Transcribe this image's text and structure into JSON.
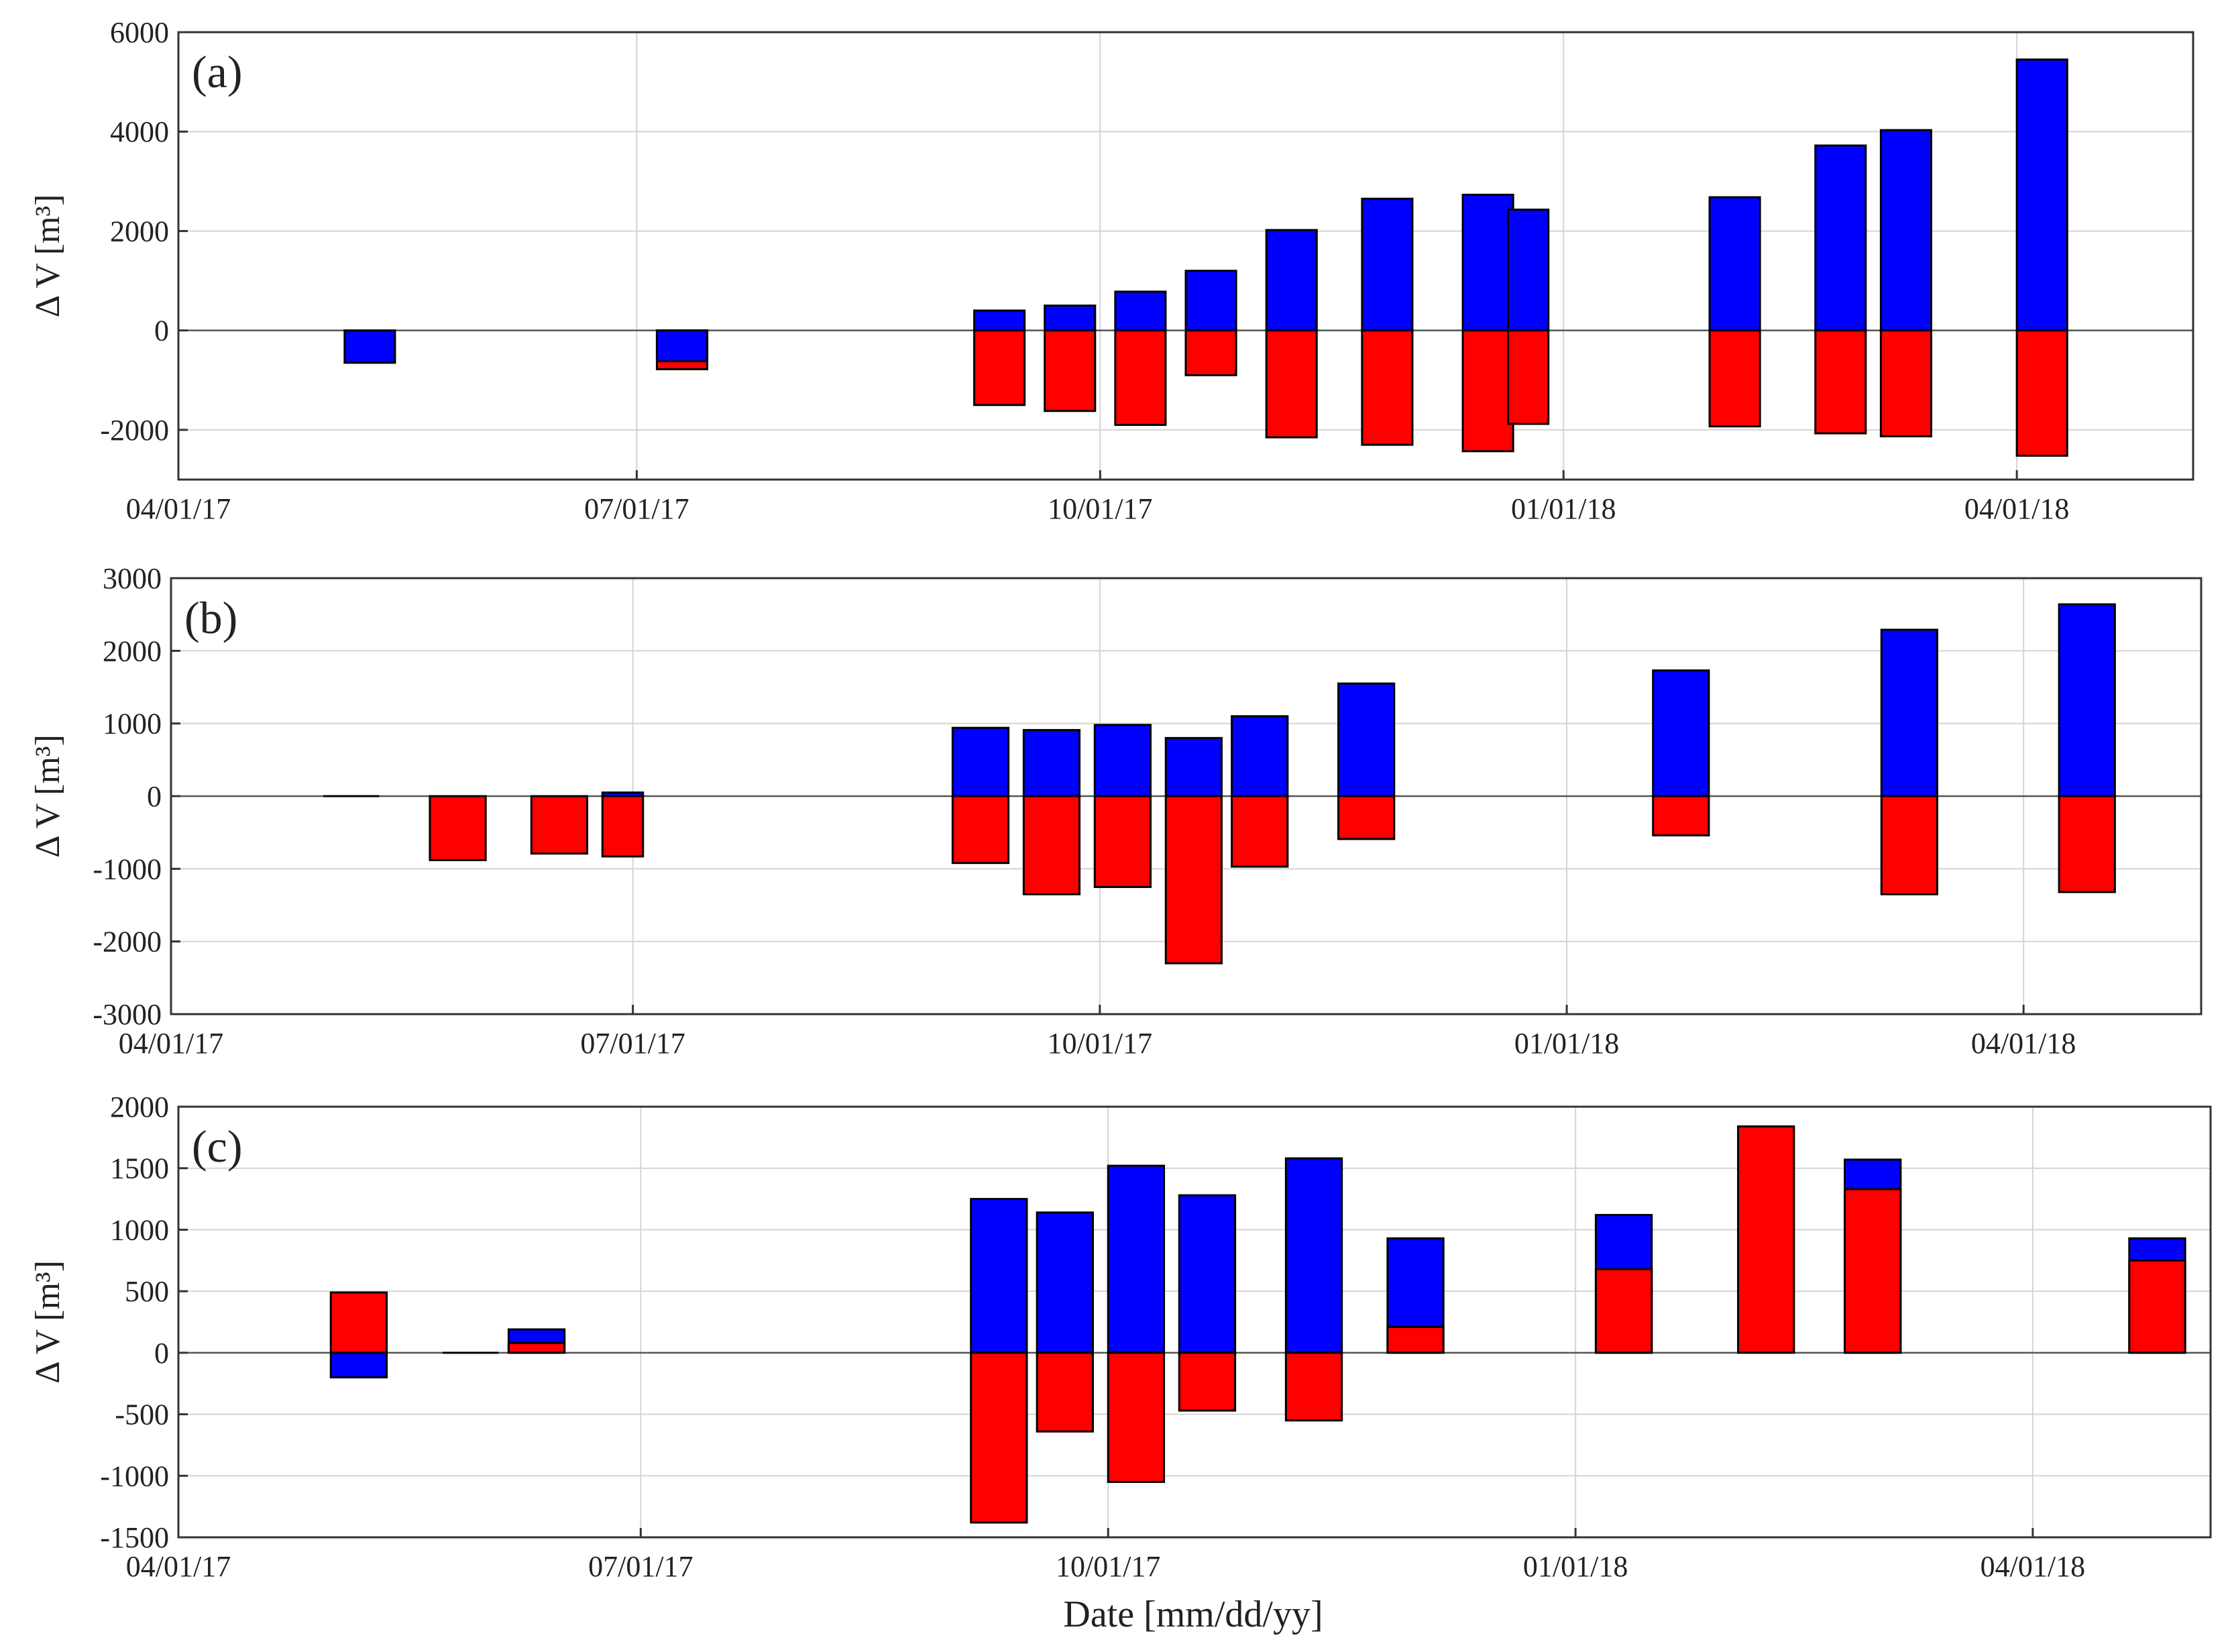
{
  "figure": {
    "xlabel": "Date [mm/dd/yy]",
    "colors": {
      "positive": "#0000ff",
      "negative": "#ff0000",
      "frame": "#333333",
      "grid": "#d4d4d4",
      "zero_line": "#555555"
    },
    "x_domain": [
      "2017-04-01",
      "2018-05-06"
    ]
  },
  "chart_data": [
    {
      "type": "bar",
      "panel": "(a)",
      "ylabel": "Δ V [m³]",
      "ylim": [
        -3000,
        6000
      ],
      "yticks": [
        6000,
        4000,
        2000,
        0,
        -2000
      ],
      "ytick_labels": [
        "6000",
        "4000",
        "2000",
        "0",
        "-2000"
      ],
      "xticks": [
        "2017-04-01",
        "2017-07-01",
        "2017-10-01",
        "2018-01-01",
        "2018-04-01"
      ],
      "xtick_labels": [
        "04/01/17",
        "07/01/17",
        "10/01/17",
        "01/01/18",
        "04/01/18"
      ],
      "series_names": [
        "blue",
        "red"
      ],
      "bars": [
        {
          "start": "2017-05-04",
          "end": "2017-05-14",
          "blue": -650,
          "red": 0
        },
        {
          "start": "2017-07-05",
          "end": "2017-07-15",
          "blue": -620,
          "red": -780
        },
        {
          "start": "2017-09-06",
          "end": "2017-09-16",
          "blue": 400,
          "red": -1500
        },
        {
          "start": "2017-09-20",
          "end": "2017-09-30",
          "blue": 500,
          "red": -1620
        },
        {
          "start": "2017-10-04",
          "end": "2017-10-14",
          "blue": 780,
          "red": -1900
        },
        {
          "start": "2017-10-18",
          "end": "2017-10-28",
          "blue": 1200,
          "red": -900
        },
        {
          "start": "2017-11-03",
          "end": "2017-11-13",
          "blue": 2020,
          "red": -2150
        },
        {
          "start": "2017-11-22",
          "end": "2017-12-02",
          "blue": 2650,
          "red": -2300
        },
        {
          "start": "2017-12-12",
          "end": "2017-12-22",
          "blue": 2730,
          "red": -2430
        },
        {
          "start": "2017-12-21",
          "end": "2017-12-29",
          "blue": 2430,
          "red": -1880
        },
        {
          "start": "2018-01-30",
          "end": "2018-02-09",
          "blue": 2680,
          "red": -1930
        },
        {
          "start": "2018-02-20",
          "end": "2018-03-02",
          "blue": 3720,
          "red": -2070
        },
        {
          "start": "2018-03-05",
          "end": "2018-03-15",
          "blue": 4030,
          "red": -2130
        },
        {
          "start": "2018-04-01",
          "end": "2018-04-11",
          "blue": 5450,
          "red": -2520
        }
      ]
    },
    {
      "type": "bar",
      "panel": "(b)",
      "ylabel": "Δ V [m³]",
      "ylim": [
        -3000,
        3000
      ],
      "yticks": [
        3000,
        2000,
        1000,
        0,
        -1000,
        -2000,
        -3000
      ],
      "ytick_labels": [
        "3000",
        "2000",
        "1000",
        "0",
        "-1000",
        "-2000",
        "-3000"
      ],
      "xticks": [
        "2017-04-01",
        "2017-07-01",
        "2017-10-01",
        "2018-01-01",
        "2018-04-01"
      ],
      "xtick_labels": [
        "04/01/17",
        "07/01/17",
        "10/01/17",
        "01/01/18",
        "04/01/18"
      ],
      "series_names": [
        "blue",
        "red"
      ],
      "bars": [
        {
          "start": "2017-05-01",
          "end": "2017-05-12",
          "blue": 0,
          "red": 0
        },
        {
          "start": "2017-05-22",
          "end": "2017-06-02",
          "blue": 0,
          "red": -880
        },
        {
          "start": "2017-06-11",
          "end": "2017-06-22",
          "blue": 0,
          "red": -790
        },
        {
          "start": "2017-06-25",
          "end": "2017-07-03",
          "blue": 50,
          "red": -830
        },
        {
          "start": "2017-09-02",
          "end": "2017-09-13",
          "blue": 940,
          "red": -920
        },
        {
          "start": "2017-09-16",
          "end": "2017-09-27",
          "blue": 910,
          "red": -1350
        },
        {
          "start": "2017-09-30",
          "end": "2017-10-11",
          "blue": 980,
          "red": -1250
        },
        {
          "start": "2017-10-14",
          "end": "2017-10-25",
          "blue": 800,
          "red": -2300
        },
        {
          "start": "2017-10-27",
          "end": "2017-11-07",
          "blue": 1100,
          "red": -970
        },
        {
          "start": "2017-11-17",
          "end": "2017-11-28",
          "blue": 1550,
          "red": -590
        },
        {
          "start": "2018-01-18",
          "end": "2018-01-29",
          "blue": 1730,
          "red": -540
        },
        {
          "start": "2018-03-04",
          "end": "2018-03-15",
          "blue": 2290,
          "red": -1350
        },
        {
          "start": "2018-04-08",
          "end": "2018-04-19",
          "blue": 2640,
          "red": -1320
        }
      ]
    },
    {
      "type": "bar",
      "panel": "(c)",
      "ylabel": "Δ V [m³]",
      "ylim": [
        -1500,
        2000
      ],
      "yticks": [
        2000,
        1500,
        1000,
        500,
        0,
        -500,
        -1000,
        -1500
      ],
      "ytick_labels": [
        "2000",
        "1500",
        "1000",
        "500",
        "0",
        "-500",
        "-1000",
        "-1500"
      ],
      "xticks": [
        "2017-04-01",
        "2017-07-01",
        "2017-10-01",
        "2018-01-01",
        "2018-04-01"
      ],
      "xtick_labels": [
        "04/01/17",
        "07/01/17",
        "10/01/17",
        "01/01/18",
        "04/01/18"
      ],
      "series_names": [
        "blue",
        "red"
      ],
      "bars": [
        {
          "start": "2017-05-01",
          "end": "2017-05-12",
          "blue": -200,
          "red": 490
        },
        {
          "start": "2017-05-23",
          "end": "2017-06-03",
          "blue": 0,
          "red": 0
        },
        {
          "start": "2017-06-05",
          "end": "2017-06-16",
          "blue": 190,
          "red": 80
        },
        {
          "start": "2017-09-04",
          "end": "2017-09-15",
          "blue": 1250,
          "red": -1380
        },
        {
          "start": "2017-09-17",
          "end": "2017-09-28",
          "blue": 1140,
          "red": -640
        },
        {
          "start": "2017-10-01",
          "end": "2017-10-12",
          "blue": 1520,
          "red": -1050
        },
        {
          "start": "2017-10-15",
          "end": "2017-10-26",
          "blue": 1280,
          "red": -470
        },
        {
          "start": "2017-11-05",
          "end": "2017-11-16",
          "blue": 1580,
          "red": -550
        },
        {
          "start": "2017-11-25",
          "end": "2017-12-06",
          "blue": 930,
          "red": 210
        },
        {
          "start": "2018-01-05",
          "end": "2018-01-16",
          "blue": 1120,
          "red": 680
        },
        {
          "start": "2018-02-02",
          "end": "2018-02-13",
          "blue": 0,
          "red": 1840
        },
        {
          "start": "2018-02-23",
          "end": "2018-03-06",
          "blue": 1570,
          "red": 1330
        },
        {
          "start": "2018-04-20",
          "end": "2018-05-01",
          "blue": 930,
          "red": 750
        }
      ]
    }
  ]
}
